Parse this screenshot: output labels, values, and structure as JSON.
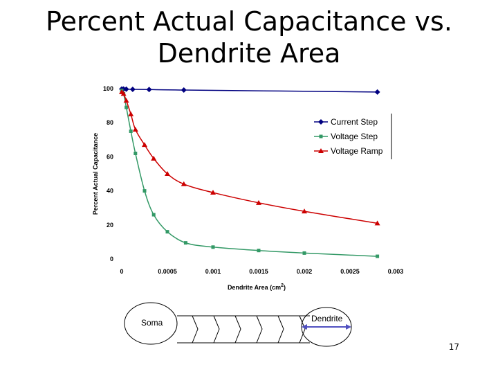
{
  "slide": {
    "title_line1": "Percent Actual Capacitance vs.",
    "title_line2": "Dendrite Area",
    "page_number": "17"
  },
  "chart_data": {
    "type": "line",
    "xlabel_main": "Dendrite Area (cm",
    "xlabel_sup": "2",
    "xlabel_end": ")",
    "ylabel": "Percent Actual Capacitance",
    "xlim": [
      0,
      0.003
    ],
    "ylim": [
      0,
      100
    ],
    "x_ticks": [
      "0",
      "0.0005",
      "0.001",
      "0.0015",
      "0.002",
      "0.0025",
      "0.003"
    ],
    "y_ticks": [
      "0",
      "20",
      "40",
      "60",
      "80",
      "100"
    ],
    "grid": false,
    "legend_position": "top-right",
    "series": [
      {
        "name": "Current Step",
        "color": "#000080",
        "marker": "diamond",
        "x": [
          0.0,
          2e-05,
          5e-05,
          0.00012,
          0.0003,
          0.00068,
          0.0028
        ],
        "y": [
          99.8,
          99.8,
          99.7,
          99.6,
          99.5,
          99.2,
          98.0
        ]
      },
      {
        "name": "Voltage Step",
        "color": "#339966",
        "marker": "square",
        "x": [
          0.0,
          2e-05,
          5e-05,
          0.0001,
          0.00015,
          0.00025,
          0.00035,
          0.0005,
          0.0007,
          0.001,
          0.0015,
          0.002,
          0.0028
        ],
        "y": [
          99,
          97,
          89,
          75,
          62,
          40,
          26,
          16,
          9.5,
          7,
          5,
          3.5,
          1.6
        ]
      },
      {
        "name": "Voltage Ramp",
        "color": "#cc0000",
        "marker": "triangle",
        "x": [
          0.0,
          2e-05,
          5e-05,
          0.0001,
          0.00015,
          0.00025,
          0.00035,
          0.0005,
          0.00068,
          0.001,
          0.0015,
          0.002,
          0.0028
        ],
        "y": [
          98,
          97,
          93,
          85,
          76,
          67,
          59,
          50,
          44,
          39,
          33,
          28,
          21
        ]
      }
    ]
  },
  "diagram": {
    "soma_label": "Soma",
    "dendrite_label": "Dendrite"
  }
}
